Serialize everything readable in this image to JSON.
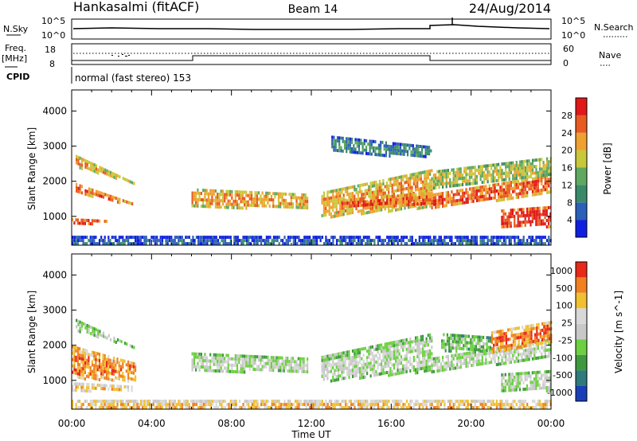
{
  "header": {
    "station": "Hankasalmi (fitACF)",
    "beam": "Beam 14",
    "date": "24/Aug/2014"
  },
  "top_panels": {
    "nsky_label": "N.Sky",
    "nsearch_label": "N.Search",
    "log_ticks": [
      "10^5",
      "10^0"
    ],
    "freq_label": "Freq.",
    "freq_unit": "[MHz]",
    "freq_ticks": [
      "18",
      "8"
    ],
    "nave_label": "Nave",
    "nave_ticks": [
      "60",
      "0"
    ],
    "cpid_label": "CPID",
    "cpid_text": "normal (fast stereo) 153"
  },
  "chart_data": [
    {
      "type": "heatmap",
      "title": "Power",
      "ylabel": "Slant Range [km]",
      "xlabel": "Time UT",
      "x_ticks": [
        "00:00",
        "04:00",
        "08:00",
        "12:00",
        "16:00",
        "20:00",
        "00:00"
      ],
      "y_ticks": [
        1000,
        2000,
        3000,
        4000
      ],
      "ylim": [
        180,
        4600
      ],
      "xlim_hours": [
        0,
        24
      ],
      "colorbar": {
        "label": "Power [dB]",
        "ticks": [
          "4",
          "8",
          "12",
          "16",
          "20",
          "24",
          "28"
        ],
        "colors": [
          "#1020e0",
          "#2c5fb8",
          "#3a8a6a",
          "#5fa860",
          "#c8c83a",
          "#f0a030",
          "#e85a20",
          "#e01818"
        ]
      },
      "bands": [
        {
          "t": [
            0.2,
            6.0
          ],
          "r0": [
            2750,
            1200
          ],
          "r1": [
            2450,
            1500
          ],
          "level": 5
        },
        {
          "t": [
            0.2,
            3.0
          ],
          "r0": [
            1950,
            1400
          ],
          "r1": [
            1700,
            1350
          ],
          "level": 6
        },
        {
          "t": [
            0.0,
            1.8
          ],
          "r0": [
            950,
            900
          ],
          "r1": [
            800,
            850
          ],
          "level": 7
        },
        {
          "t": [
            6.0,
            11.8
          ],
          "r0": [
            1800,
            1650
          ],
          "r1": [
            1300,
            1250
          ],
          "level": 5
        },
        {
          "t": [
            12.5,
            18.0
          ],
          "r0": [
            1700,
            2350
          ],
          "r1": [
            1000,
            1300
          ],
          "level": 5
        },
        {
          "t": [
            13.5,
            18.0
          ],
          "r0": [
            1500,
            1700
          ],
          "r1": [
            1250,
            1350
          ],
          "level": 6
        },
        {
          "t": [
            18.0,
            24.0
          ],
          "r0": [
            1650,
            2200
          ],
          "r1": [
            1250,
            1700
          ],
          "level": 6
        },
        {
          "t": [
            18.0,
            24.0
          ],
          "r0": [
            2300,
            2700
          ],
          "r1": [
            1800,
            2200
          ],
          "level": 4
        },
        {
          "t": [
            21.5,
            24.0
          ],
          "r0": [
            1200,
            1300
          ],
          "r1": [
            700,
            750
          ],
          "level": 7
        },
        {
          "t": [
            13.0,
            18.0
          ],
          "r0": [
            3300,
            3000
          ],
          "r1": [
            2850,
            2700
          ],
          "level": 2
        },
        {
          "t": [
            0.0,
            24.0
          ],
          "r0": [
            450,
            450
          ],
          "r1": [
            200,
            200
          ],
          "level": 1
        }
      ]
    },
    {
      "type": "heatmap",
      "title": "Velocity",
      "ylabel": "Slant Range [km]",
      "xlabel": "Time UT",
      "x_ticks": [
        "00:00",
        "04:00",
        "08:00",
        "12:00",
        "16:00",
        "20:00",
        "00:00"
      ],
      "y_ticks": [
        1000,
        2000,
        3000,
        4000
      ],
      "ylim": [
        180,
        4600
      ],
      "xlim_hours": [
        0,
        24
      ],
      "colorbar": {
        "label": "Velocity [m s^-1]",
        "ticks": [
          "1000",
          "500",
          "100",
          "25",
          "-25",
          "-100",
          "-500",
          "-1000"
        ],
        "colors": [
          "#1a3fb8",
          "#2f7a7a",
          "#3f9a3f",
          "#6cd040",
          "#c8c8c8",
          "#d8d8d8",
          "#f0c030",
          "#f08020",
          "#e82818"
        ]
      },
      "bands": [
        {
          "t": [
            0.2,
            6.0
          ],
          "r0": [
            2750,
            1200
          ],
          "r1": [
            2450,
            1500
          ],
          "level": 4
        },
        {
          "t": [
            0.0,
            3.2
          ],
          "r0": [
            2000,
            1500
          ],
          "r1": [
            1100,
            1000
          ],
          "level": 7
        },
        {
          "t": [
            0.0,
            3.0
          ],
          "r0": [
            950,
            850
          ],
          "r1": [
            750,
            700
          ],
          "level": 6
        },
        {
          "t": [
            6.0,
            11.8
          ],
          "r0": [
            1800,
            1650
          ],
          "r1": [
            1300,
            1250
          ],
          "level": 4
        },
        {
          "t": [
            12.5,
            18.0
          ],
          "r0": [
            1700,
            2350
          ],
          "r1": [
            1000,
            1300
          ],
          "level": 4
        },
        {
          "t": [
            18.0,
            24.0
          ],
          "r0": [
            1650,
            2200
          ],
          "r1": [
            1250,
            1700
          ],
          "level": 4
        },
        {
          "t": [
            18.5,
            21.0
          ],
          "r0": [
            2350,
            2250
          ],
          "r1": [
            1850,
            1900
          ],
          "level": 3
        },
        {
          "t": [
            21.0,
            24.0
          ],
          "r0": [
            2400,
            2700
          ],
          "r1": [
            1800,
            2150
          ],
          "level": 7
        },
        {
          "t": [
            21.5,
            24.0
          ],
          "r0": [
            1200,
            1300
          ],
          "r1": [
            700,
            750
          ],
          "level": 4
        },
        {
          "t": [
            0.0,
            24.0
          ],
          "r0": [
            450,
            450
          ],
          "r1": [
            200,
            200
          ],
          "level": 6
        }
      ]
    }
  ]
}
